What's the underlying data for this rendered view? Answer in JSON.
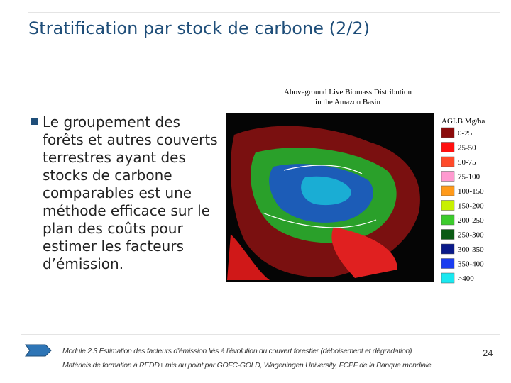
{
  "header": {
    "title": "Stratification par stock de carbone (2/2)"
  },
  "bullet": {
    "text": "Le groupement des forêts et autres couverts terrestres ayant des stocks de carbone comparables est une méthode efficace sur le plan des coûts pour estimer les facteurs d’émission."
  },
  "figure": {
    "title_lines": [
      "Aboveground Live Biomass Distribution",
      "in the Amazon Basin"
    ],
    "legend": {
      "title": "AGLB Mg/ha",
      "entries": [
        {
          "label": "0-25",
          "color": "#8b0a0a"
        },
        {
          "label": "25-50",
          "color": "#ff1010"
        },
        {
          "label": "50-75",
          "color": "#ff4a2a"
        },
        {
          "label": "75-100",
          "color": "#ff9ad0"
        },
        {
          "label": "100-150",
          "color": "#ff9a1a"
        },
        {
          "label": "150-200",
          "color": "#c8f000"
        },
        {
          "label": "200-250",
          "color": "#3ccc2c"
        },
        {
          "label": "250-300",
          "color": "#0a5a14"
        },
        {
          "label": "300-350",
          "color": "#0a1a8a"
        },
        {
          "label": "350-400",
          "color": "#1a3cf0"
        },
        {
          "label": ">400",
          "color": "#1ae8f0"
        }
      ]
    }
  },
  "footer": {
    "lines": [
      "Module 2.3 Estimation des facteurs d’émission liés à l’évolution du couvert forestier (déboisement et dégradation)",
      "Matériels de formation à REDD+ mis au point par GOFC-GOLD, Wageningen University, FCPF de la Banque mondiale"
    ],
    "page": "24"
  }
}
